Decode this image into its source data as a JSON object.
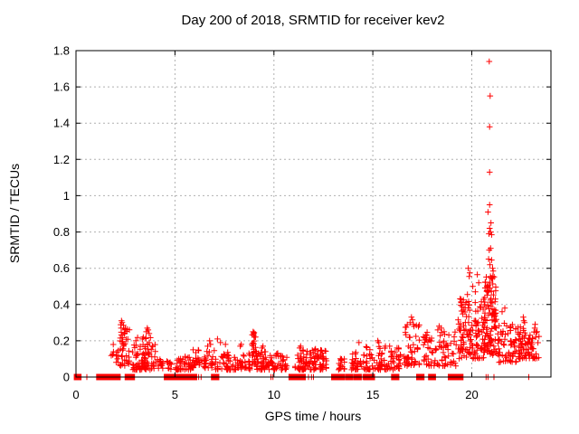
{
  "title": "Day 200 of 2018, SRMTID for receiver kev2",
  "colors": {
    "marker": "#ff0000",
    "grid": "#b0b0b0",
    "axis": "#000000",
    "background": "#ffffff"
  },
  "chart_data": {
    "type": "scatter",
    "title": "Day 200 of 2018, SRMTID for receiver kev2",
    "xlabel": "GPS time / hours",
    "ylabel": "SRMTID / TECUs",
    "xlim": [
      0,
      24
    ],
    "ylim": [
      0,
      1.8
    ],
    "grid": true,
    "legend": false,
    "marker_style": "plus",
    "zero_marker_style": "filled-square",
    "x_tick_values": [
      0,
      5,
      10,
      15,
      20
    ],
    "x_tick_labels": [
      "0",
      "5",
      "10",
      "15",
      "20"
    ],
    "y_tick_values": [
      0,
      0.2,
      0.4,
      0.6,
      0.8,
      1,
      1.2,
      1.4,
      1.6,
      1.8
    ],
    "y_tick_labels": [
      "0",
      "0.2",
      "0.4",
      "0.6",
      "0.8",
      "1",
      "1.2",
      "1.4",
      "1.6",
      "1.8"
    ],
    "points": [
      [
        2.3,
        0.31
      ],
      [
        2.33,
        0.3
      ],
      [
        2.4,
        0.285
      ],
      [
        2.28,
        0.27
      ],
      [
        2.47,
        0.26
      ],
      [
        3.6,
        0.27
      ],
      [
        3.65,
        0.26
      ],
      [
        3.55,
        0.25
      ],
      [
        3.4,
        0.22
      ],
      [
        3.35,
        0.21
      ],
      [
        3.7,
        0.24
      ],
      [
        5.92,
        0.15
      ],
      [
        6.75,
        0.2
      ],
      [
        6.8,
        0.18
      ],
      [
        6.65,
        0.17
      ],
      [
        7.15,
        0.21
      ],
      [
        7.3,
        0.19
      ],
      [
        7.55,
        0.18
      ],
      [
        8.35,
        0.18
      ],
      [
        8.3,
        0.17
      ],
      [
        8.95,
        0.25
      ],
      [
        8.98,
        0.24
      ],
      [
        9.02,
        0.22
      ],
      [
        9.45,
        0.17
      ],
      [
        9.4,
        0.16
      ],
      [
        11.35,
        0.17
      ],
      [
        11.3,
        0.16
      ],
      [
        12.1,
        0.155
      ],
      [
        14.3,
        0.19
      ],
      [
        15.25,
        0.2
      ],
      [
        15.3,
        0.19
      ],
      [
        15.85,
        0.17
      ],
      [
        16.3,
        0.16
      ],
      [
        16.95,
        0.33
      ],
      [
        17.0,
        0.315
      ],
      [
        16.88,
        0.3
      ],
      [
        17.05,
        0.29
      ],
      [
        18.35,
        0.28
      ],
      [
        18.45,
        0.27
      ],
      [
        18.28,
        0.26
      ],
      [
        18.6,
        0.25
      ],
      [
        19.82,
        0.6
      ],
      [
        19.9,
        0.575
      ],
      [
        19.87,
        0.555
      ],
      [
        20.05,
        0.5
      ],
      [
        20.18,
        0.47
      ],
      [
        19.78,
        0.455
      ],
      [
        20.28,
        0.565
      ],
      [
        20.35,
        0.52
      ],
      [
        20.88,
        1.74
      ],
      [
        20.93,
        1.55
      ],
      [
        20.9,
        1.38
      ],
      [
        20.9,
        1.13
      ],
      [
        20.9,
        0.95
      ],
      [
        20.82,
        0.91
      ],
      [
        20.97,
        0.85
      ],
      [
        20.9,
        0.82
      ],
      [
        20.95,
        0.8
      ],
      [
        20.87,
        0.79
      ],
      [
        21.0,
        0.785
      ],
      [
        20.95,
        0.71
      ],
      [
        20.88,
        0.7
      ],
      [
        20.85,
        0.65
      ],
      [
        21.0,
        0.645
      ],
      [
        20.92,
        0.62
      ],
      [
        21.05,
        0.6
      ],
      [
        21.08,
        0.585
      ],
      [
        21.53,
        0.36
      ],
      [
        21.67,
        0.38
      ],
      [
        22.6,
        0.33
      ],
      [
        22.63,
        0.31
      ],
      [
        22.67,
        0.3
      ],
      [
        23.2,
        0.29
      ],
      [
        23.18,
        0.27
      ],
      [
        23.3,
        0.25
      ]
    ],
    "bands": [
      {
        "x0": 1.78,
        "x1": 2.2,
        "count": 12,
        "v0": 0.08,
        "v1": 0.2,
        "skew": 1.5
      },
      {
        "x0": 2.2,
        "x1": 2.7,
        "count": 40,
        "v0": 0.06,
        "v1": 0.29,
        "skew": 1.2
      },
      {
        "x0": 2.85,
        "x1": 4.05,
        "count": 90,
        "v0": 0.04,
        "v1": 0.22,
        "skew": 2
      },
      {
        "x0": 4.05,
        "x1": 4.4,
        "count": 14,
        "v0": 0.04,
        "v1": 0.1,
        "skew": 1.5
      },
      {
        "x0": 4.45,
        "x1": 4.95,
        "count": 10,
        "v0": 0.04,
        "v1": 0.09,
        "skew": 1.5
      },
      {
        "x0": 5.0,
        "x1": 6.05,
        "count": 48,
        "v0": 0.04,
        "v1": 0.12,
        "skew": 1.8
      },
      {
        "x0": 6.05,
        "x1": 7.0,
        "count": 42,
        "v0": 0.05,
        "v1": 0.15,
        "skew": 1.8
      },
      {
        "x0": 7.0,
        "x1": 8.05,
        "count": 46,
        "v0": 0.04,
        "v1": 0.14,
        "skew": 1.8
      },
      {
        "x0": 8.05,
        "x1": 8.8,
        "count": 34,
        "v0": 0.04,
        "v1": 0.14,
        "skew": 1.8
      },
      {
        "x0": 8.85,
        "x1": 9.1,
        "count": 24,
        "v0": 0.06,
        "v1": 0.25,
        "skew": 1.1
      },
      {
        "x0": 9.1,
        "x1": 10.25,
        "count": 70,
        "v0": 0.04,
        "v1": 0.14,
        "skew": 1.8
      },
      {
        "x0": 10.3,
        "x1": 10.68,
        "count": 20,
        "v0": 0.04,
        "v1": 0.12,
        "skew": 1.6
      },
      {
        "x0": 11.0,
        "x1": 12.68,
        "count": 105,
        "v0": 0.04,
        "v1": 0.15,
        "skew": 1.8
      },
      {
        "x0": 13.25,
        "x1": 13.58,
        "count": 18,
        "v0": 0.04,
        "v1": 0.11,
        "skew": 1.5
      },
      {
        "x0": 13.85,
        "x1": 14.45,
        "count": 26,
        "v0": 0.04,
        "v1": 0.14,
        "skew": 1.6
      },
      {
        "x0": 14.5,
        "x1": 16.45,
        "count": 90,
        "v0": 0.04,
        "v1": 0.17,
        "skew": 1.8
      },
      {
        "x0": 16.55,
        "x1": 17.35,
        "count": 48,
        "v0": 0.06,
        "v1": 0.3,
        "skew": 1.4
      },
      {
        "x0": 17.55,
        "x1": 19.25,
        "count": 80,
        "v0": 0.06,
        "v1": 0.25,
        "skew": 1.5
      },
      {
        "x0": 19.3,
        "x1": 20.65,
        "count": 130,
        "v0": 0.1,
        "v1": 0.44,
        "skew": 1.3
      },
      {
        "x0": 20.65,
        "x1": 21.25,
        "count": 105,
        "v0": 0.12,
        "v1": 0.56,
        "skew": 1.1
      },
      {
        "x0": 21.3,
        "x1": 22.25,
        "count": 65,
        "v0": 0.08,
        "v1": 0.3,
        "skew": 1.5
      },
      {
        "x0": 22.3,
        "x1": 22.8,
        "count": 42,
        "v0": 0.1,
        "v1": 0.28,
        "skew": 1.4
      },
      {
        "x0": 22.8,
        "x1": 23.4,
        "count": 38,
        "v0": 0.1,
        "v1": 0.25,
        "skew": 1.5
      }
    ],
    "zero_squares": [
      0.05,
      0.12,
      1.18,
      1.28,
      1.42,
      1.52,
      1.78,
      1.88,
      2.02,
      2.1,
      2.62,
      2.72,
      2.82,
      4.6,
      4.68,
      4.78,
      5.08,
      5.16,
      5.28,
      5.38,
      5.62,
      5.72,
      5.88,
      5.96,
      6.98,
      7.08,
      10.9,
      11.0,
      11.15,
      11.3,
      11.45,
      13.05,
      13.15,
      13.3,
      13.42,
      13.75,
      13.85,
      14.18,
      14.28,
      14.68,
      14.78,
      14.95,
      16.08,
      16.18,
      17.35,
      17.45,
      17.95,
      18.03,
      18.95,
      19.05,
      19.18,
      19.3,
      19.42
    ],
    "zero_plus": [
      0.55,
      6.1,
      6.2,
      6.32,
      9.85,
      9.95,
      11.75,
      11.9,
      12.0,
      14.5,
      20.72,
      20.82,
      21.12,
      22.88
    ]
  }
}
